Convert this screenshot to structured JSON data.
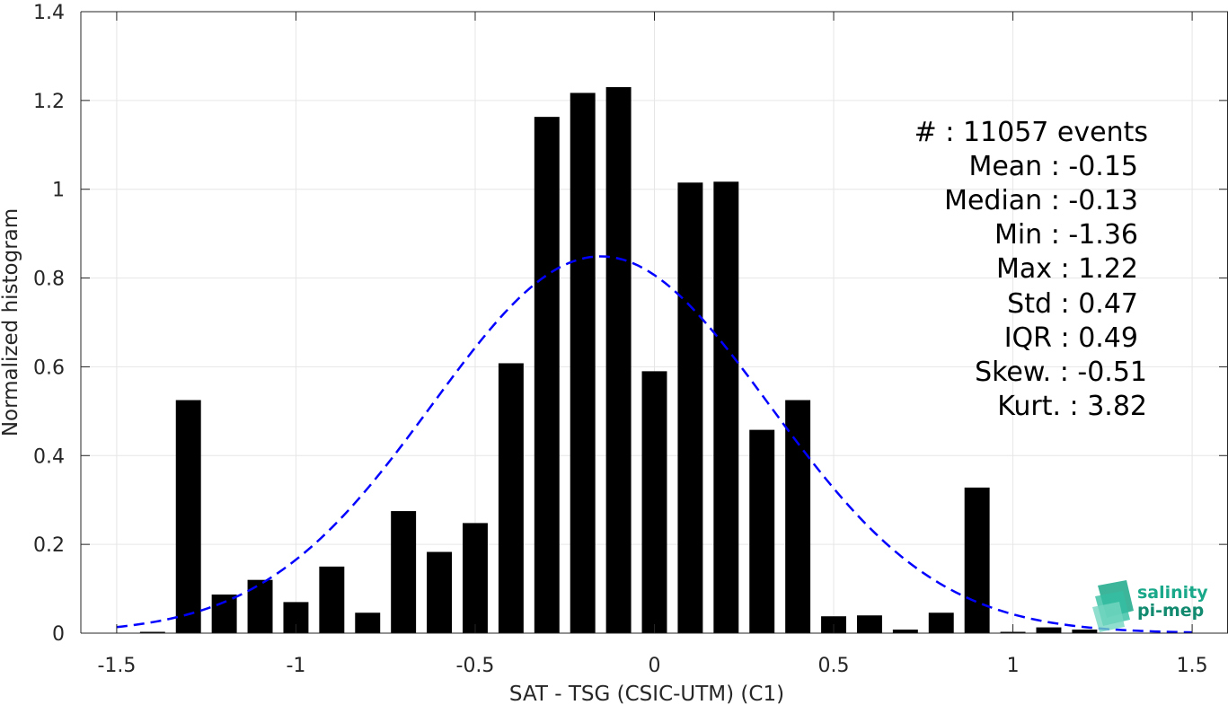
{
  "chart_data": {
    "type": "bar",
    "xlabel": "SAT - TSG (CSIC-UTM) (C1)",
    "ylabel": "Normalized histogram",
    "xlim": [
      -1.6,
      1.6
    ],
    "ylim": [
      0,
      1.4
    ],
    "xticks": [
      -1.5,
      -1,
      -0.5,
      0,
      0.5,
      1,
      1.5
    ],
    "xtick_labels": [
      "-1.5",
      "-1",
      "-0.5",
      "0",
      "0.5",
      "1",
      "1.5"
    ],
    "yticks": [
      0,
      0.2,
      0.4,
      0.6,
      0.8,
      1,
      1.2,
      1.4
    ],
    "ytick_labels": [
      "0",
      "0.2",
      "0.4",
      "0.6",
      "0.8",
      "1",
      "1.2",
      "1.4"
    ],
    "grid": true,
    "bar_width": 0.07,
    "bar_color": "#000000",
    "bars": [
      {
        "x": -1.4,
        "y": 0.003
      },
      {
        "x": -1.3,
        "y": 0.525
      },
      {
        "x": -1.2,
        "y": 0.087
      },
      {
        "x": -1.1,
        "y": 0.12
      },
      {
        "x": -1.0,
        "y": 0.07
      },
      {
        "x": -0.9,
        "y": 0.15
      },
      {
        "x": -0.8,
        "y": 0.046
      },
      {
        "x": -0.7,
        "y": 0.275
      },
      {
        "x": -0.6,
        "y": 0.183
      },
      {
        "x": -0.5,
        "y": 0.248
      },
      {
        "x": -0.4,
        "y": 0.608
      },
      {
        "x": -0.3,
        "y": 1.163
      },
      {
        "x": -0.2,
        "y": 1.217
      },
      {
        "x": -0.1,
        "y": 1.23
      },
      {
        "x": 0.0,
        "y": 0.59
      },
      {
        "x": 0.1,
        "y": 1.015
      },
      {
        "x": 0.2,
        "y": 1.017
      },
      {
        "x": 0.3,
        "y": 0.458
      },
      {
        "x": 0.4,
        "y": 0.525
      },
      {
        "x": 0.5,
        "y": 0.038
      },
      {
        "x": 0.6,
        "y": 0.04
      },
      {
        "x": 0.7,
        "y": 0.008
      },
      {
        "x": 0.8,
        "y": 0.046
      },
      {
        "x": 0.9,
        "y": 0.328
      },
      {
        "x": 1.0,
        "y": 0.003
      },
      {
        "x": 1.1,
        "y": 0.013
      },
      {
        "x": 1.2,
        "y": 0.008
      }
    ],
    "fit_curve": {
      "type": "gaussian",
      "mean": -0.15,
      "std": 0.47,
      "x_range": [
        -1.5,
        1.5
      ],
      "color": "#0000ff",
      "style": "dashed"
    }
  },
  "stats": {
    "events": "#  : 11057 events",
    "mean": "Mean : -0.15",
    "median": "Median : -0.13",
    "min": "Min : -1.36",
    "max": "Max : 1.22",
    "std": "Std : 0.47",
    "iqr": "IQR : 0.49",
    "skew": "Skew. : -0.51",
    "kurt": "Kurt. : 3.82"
  },
  "logo": {
    "line1": "salinity",
    "line2": "pi-mep",
    "color": "#1aa88a"
  }
}
